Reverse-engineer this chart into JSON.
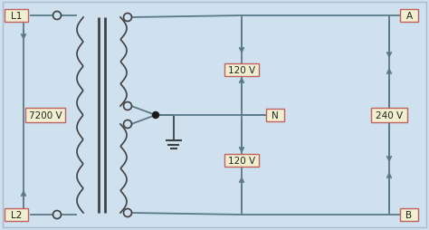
{
  "bg_color": "#cfe0ee",
  "line_color": "#5a7a8a",
  "dark_line": "#404040",
  "box_border_color": "#c06060",
  "box_face_color": "#f0f0d0",
  "dot_color": "#1a1a1a",
  "label_L1": "L1",
  "label_L2": "L2",
  "label_A": "A",
  "label_B": "B",
  "label_N": "N",
  "label_7200V": "7200 V",
  "label_120V_top": "120 V",
  "label_120V_bot": "120 V",
  "label_240V": "240 V",
  "fig_w": 4.74,
  "fig_h": 2.55,
  "dpi": 100
}
